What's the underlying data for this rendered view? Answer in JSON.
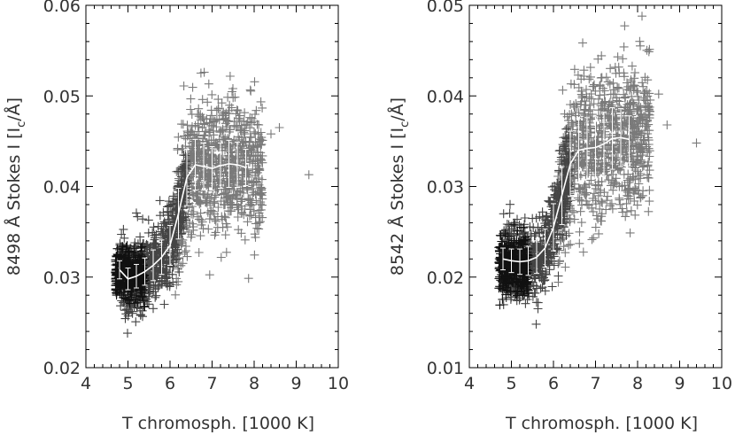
{
  "chart_data": [
    {
      "type": "scatter",
      "xlabel": "T chromosph. [1000 K]",
      "ylabel": "8498 Å  Stokes I [I_c/Å]",
      "ylabel_parts": {
        "prefix": "8498 Å  Stokes I [I",
        "sub": "c",
        "suffix": "/Å]"
      },
      "xlim": [
        4,
        10
      ],
      "ylim": [
        0.02,
        0.06
      ],
      "xticks": [
        "4",
        "5",
        "6",
        "7",
        "8",
        "9",
        "10"
      ],
      "yticks": [
        "0.02",
        "0.03",
        "0.04",
        "0.05",
        "0.06"
      ],
      "grid": false,
      "colors": {
        "inner": "#111111",
        "middle": "#444444",
        "outer": "#7a7a7a",
        "mean_line": "#ffffff"
      },
      "clusters": [
        {
          "shade": "outer",
          "count": 900,
          "x_range": [
            6.1,
            8.2
          ],
          "y_center": 0.042,
          "y_spread": 0.0035
        },
        {
          "shade": "middle",
          "count": 700,
          "x_range": [
            4.8,
            6.4
          ],
          "y_center": 0.032,
          "y_spread": 0.0022
        },
        {
          "shade": "inner",
          "count": 350,
          "x_range": [
            4.7,
            5.4
          ],
          "y_center": 0.0302,
          "y_spread": 0.0014
        }
      ],
      "mean": {
        "x": [
          4.8,
          5.0,
          5.2,
          5.4,
          5.6,
          5.8,
          6.0,
          6.2,
          6.4,
          6.6,
          6.8,
          7.0,
          7.2,
          7.4,
          7.6,
          7.8
        ],
        "y": [
          0.0308,
          0.0298,
          0.0301,
          0.0306,
          0.0313,
          0.0322,
          0.0335,
          0.037,
          0.041,
          0.0424,
          0.0422,
          0.042,
          0.0423,
          0.0425,
          0.0424,
          0.0421
        ],
        "err": [
          0.001,
          0.0012,
          0.0013,
          0.0015,
          0.0017,
          0.0019,
          0.0022,
          0.0028,
          0.0031,
          0.0028,
          0.0026,
          0.0024,
          0.0025,
          0.0026,
          0.0025,
          0.002
        ]
      },
      "outliers": [
        [
          9.3,
          0.0413
        ],
        [
          8.6,
          0.0465
        ],
        [
          8.4,
          0.0458
        ],
        [
          8.0,
          0.0472
        ]
      ]
    },
    {
      "type": "scatter",
      "xlabel": "T chromosph. [1000 K]",
      "ylabel": "8542 Å Stokes I [I_c/Å]",
      "ylabel_parts": {
        "prefix": "8542 Å Stokes I [I",
        "sub": "c",
        "suffix": "/Å]"
      },
      "xlim": [
        4,
        10
      ],
      "ylim": [
        0.01,
        0.05
      ],
      "xticks": [
        "4",
        "5",
        "6",
        "7",
        "8",
        "9",
        "10"
      ],
      "yticks": [
        "0.01",
        "0.02",
        "0.03",
        "0.04",
        "0.05"
      ],
      "grid": false,
      "colors": {
        "inner": "#111111",
        "middle": "#444444",
        "outer": "#7a7a7a",
        "mean_line": "#ffffff"
      },
      "clusters": [
        {
          "shade": "outer",
          "count": 900,
          "x_range": [
            6.1,
            8.3
          ],
          "y_center": 0.0345,
          "y_spread": 0.004
        },
        {
          "shade": "middle",
          "count": 700,
          "x_range": [
            4.8,
            6.4
          ],
          "y_center": 0.0225,
          "y_spread": 0.0022
        },
        {
          "shade": "inner",
          "count": 350,
          "x_range": [
            4.7,
            5.4
          ],
          "y_center": 0.0215,
          "y_spread": 0.0016
        }
      ],
      "mean": {
        "x": [
          4.8,
          5.0,
          5.2,
          5.4,
          5.6,
          5.8,
          6.0,
          6.2,
          6.4,
          6.6,
          6.8,
          7.0,
          7.2,
          7.4,
          7.6,
          7.8
        ],
        "y": [
          0.022,
          0.0218,
          0.0217,
          0.0218,
          0.0222,
          0.0232,
          0.0255,
          0.029,
          0.0325,
          0.034,
          0.0342,
          0.0343,
          0.0347,
          0.0353,
          0.0354,
          0.0352
        ],
        "err": [
          0.0012,
          0.0013,
          0.0014,
          0.0016,
          0.0018,
          0.0021,
          0.0026,
          0.0032,
          0.0036,
          0.0035,
          0.0034,
          0.0034,
          0.0035,
          0.0034,
          0.0032,
          0.0026
        ]
      },
      "outliers": [
        [
          9.4,
          0.0348
        ],
        [
          8.7,
          0.0368
        ],
        [
          8.5,
          0.0402
        ],
        [
          8.2,
          0.0395
        ]
      ]
    }
  ]
}
